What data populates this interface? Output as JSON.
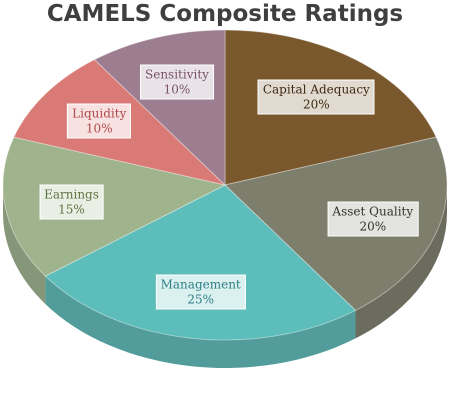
{
  "chart_data": {
    "type": "pie",
    "title": "CAMELS Composite Ratings",
    "categories": [
      "Capital Adequacy",
      "Asset Quality",
      "Management",
      "Earnings",
      "Liquidity",
      "Sensitivity"
    ],
    "values": [
      20,
      20,
      25,
      15,
      10,
      10
    ],
    "value_labels": [
      "20%",
      "20%",
      "25%",
      "15%",
      "10%",
      "10%"
    ],
    "colors": [
      "#6e4a1c",
      "#73735f",
      "#4fb7b4",
      "#97ae83",
      "#d66f6a",
      "#957388"
    ],
    "label_colors": [
      "#3d2a10",
      "#34342a",
      "#2f7f86",
      "#5f7340",
      "#b2484a",
      "#7a526c"
    ],
    "start_angle_deg": 0,
    "direction": "clockwise",
    "style": "3d-perspective",
    "legend": "none"
  }
}
